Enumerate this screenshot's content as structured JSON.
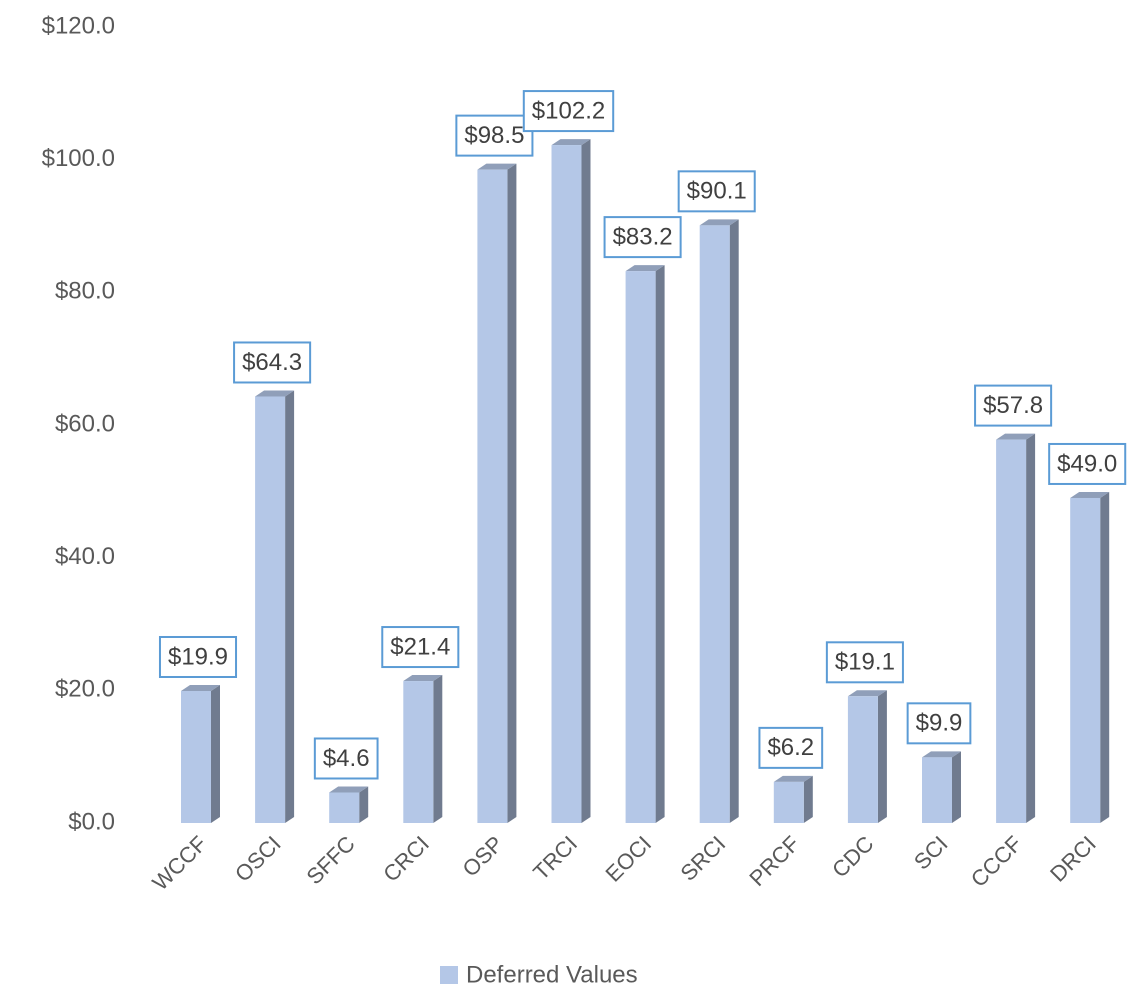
{
  "chart_data": {
    "type": "bar",
    "categories": [
      "WCCF",
      "OSCI",
      "SFFC",
      "CRCI",
      "OSP",
      "TRCI",
      "EOCI",
      "SRCI",
      "PRCF",
      "CDC",
      "SCI",
      "CCCF",
      "DRCI"
    ],
    "series": [
      {
        "name": "Deferred Values",
        "color": "#b4c7e7",
        "values": [
          19.9,
          64.3,
          4.6,
          21.4,
          98.5,
          102.2,
          83.2,
          90.1,
          6.2,
          19.1,
          9.9,
          57.8,
          49.0
        ],
        "value_labels": [
          "$19.9",
          "$64.3",
          "$4.6",
          "$21.4",
          "$98.5",
          "$102.2",
          "$83.2",
          "$90.1",
          "$6.2",
          "$19.1",
          "$9.9",
          "$57.8",
          "$49.0"
        ]
      }
    ],
    "ylim": [
      0,
      120
    ],
    "yticks": [
      {
        "value": 0,
        "label": "$0.0"
      },
      {
        "value": 20,
        "label": "$20.0"
      },
      {
        "value": 40,
        "label": "$40.0"
      },
      {
        "value": 60,
        "label": "$60.0"
      },
      {
        "value": 80,
        "label": "$80.0"
      },
      {
        "value": 100,
        "label": "$100.0"
      },
      {
        "value": 120,
        "label": "$120.0"
      }
    ],
    "legend": "bottom"
  }
}
